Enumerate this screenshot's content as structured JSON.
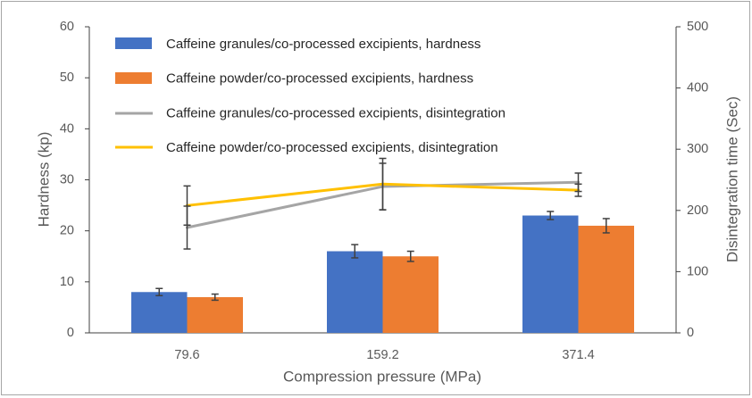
{
  "chart_data": {
    "type": "bar",
    "categories": [
      "79.6",
      "159.2",
      "371.4"
    ],
    "xlabel": "Compression pressure (MPa)",
    "ylabel": "Hardness (kp)",
    "y2label": "Disintegration time (Sec)",
    "ylim": [
      0,
      60
    ],
    "y2lim": [
      0,
      500
    ],
    "yticks": [
      0,
      10,
      20,
      30,
      40,
      50,
      60
    ],
    "y2ticks": [
      0,
      100,
      200,
      300,
      400,
      500
    ],
    "grid": false,
    "legend": "top-left",
    "errorbar_color": "#404040",
    "series": [
      {
        "name": "Caffeine granules/co-processed excipients, hardness",
        "type": "bar",
        "axis": "left",
        "color": "#4472C4",
        "values": [
          8,
          16,
          23
        ],
        "errors": [
          0.7,
          1.3,
          0.8
        ]
      },
      {
        "name": "Caffeine powder/co-processed excipients, hardness",
        "type": "bar",
        "axis": "left",
        "color": "#ED7D31",
        "values": [
          7,
          15,
          21
        ],
        "errors": [
          0.6,
          1.0,
          1.4
        ]
      },
      {
        "name": "Caffeine granules/co-processed excipients, disintegration",
        "type": "line",
        "axis": "right",
        "color": "#A5A5A5",
        "values": [
          172,
          239,
          246
        ],
        "errors": [
          35,
          38,
          15
        ]
      },
      {
        "name": "Caffeine powder/co-processed excipients, disintegration",
        "type": "line",
        "axis": "right",
        "color": "#FFC000",
        "values": [
          208,
          243,
          233
        ],
        "errors": [
          32,
          42,
          10
        ]
      }
    ]
  }
}
